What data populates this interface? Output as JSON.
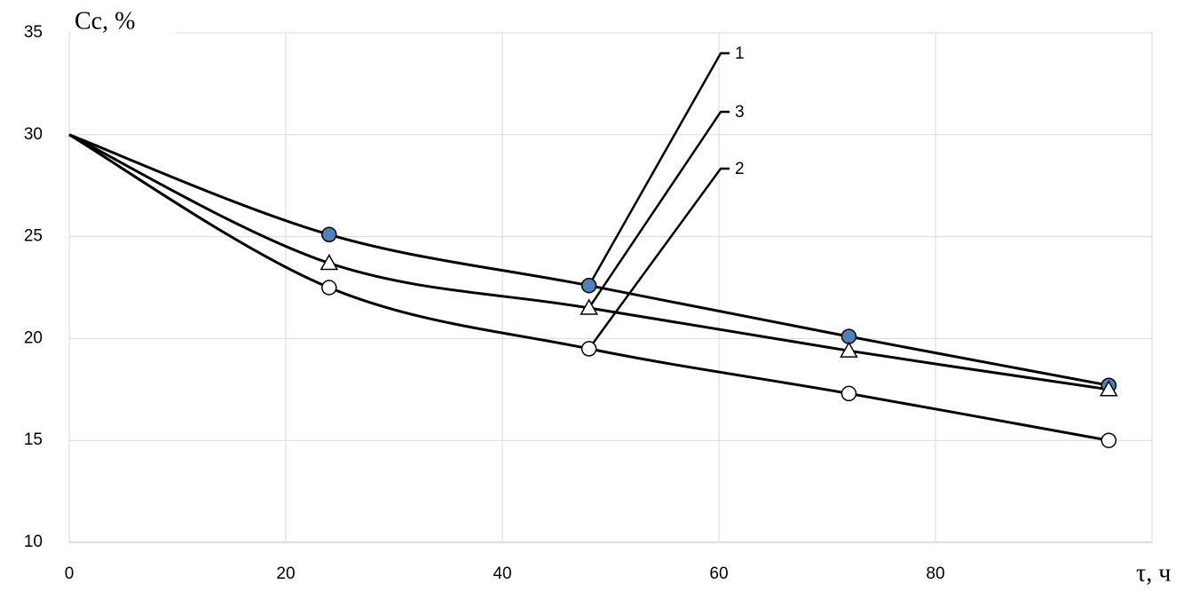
{
  "chart_data": {
    "type": "line",
    "ylabel": "Cc, %",
    "xlabel": "τ, ч",
    "x": [
      0,
      24,
      48,
      72,
      96
    ],
    "series": [
      {
        "name": "1",
        "color": "#000000",
        "marker": "circle",
        "marker_fill": "#4f81bd",
        "values": [
          30,
          25.1,
          22.6,
          20.1,
          17.7
        ]
      },
      {
        "name": "2",
        "color": "#000000",
        "marker": "circle",
        "marker_fill": "#ffffff",
        "values": [
          30,
          22.5,
          19.5,
          17.3,
          15.0
        ]
      },
      {
        "name": "3",
        "color": "#000000",
        "marker": "triangle",
        "marker_fill": "#ffffff",
        "values": [
          30,
          23.7,
          21.5,
          19.4,
          17.5
        ]
      }
    ],
    "xlim": [
      0,
      100
    ],
    "xticks": [
      0,
      20,
      40,
      60,
      80
    ],
    "ylim": [
      10,
      35
    ],
    "yticks": [
      10,
      15,
      20,
      25,
      30,
      35
    ],
    "grid": true
  }
}
